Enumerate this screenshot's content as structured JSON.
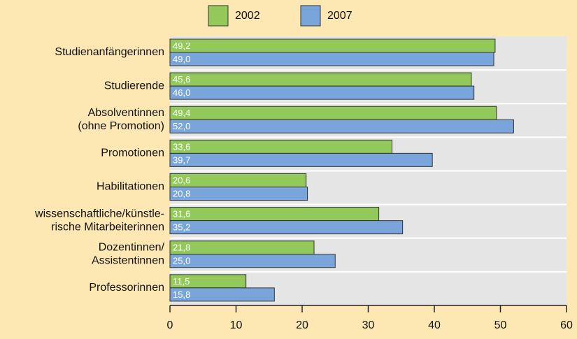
{
  "chart_data": {
    "type": "bar",
    "orientation": "horizontal",
    "categories": [
      [
        "Studienanfängerinnen"
      ],
      [
        "Studierende"
      ],
      [
        "Absolventinnen",
        "(ohne Promotion)"
      ],
      [
        "Promotionen"
      ],
      [
        "Habilitationen"
      ],
      [
        "wissenschaftliche/künstle-",
        "rische Mitarbeiterinnen"
      ],
      [
        "Dozentinnen/",
        "Assistentinnen"
      ],
      [
        "Professorinnen"
      ]
    ],
    "series": [
      {
        "name": "2002",
        "color": "#92c95a",
        "values": [
          49.2,
          45.6,
          49.4,
          33.6,
          20.6,
          31.6,
          21.8,
          11.5
        ],
        "value_labels": [
          "49,2",
          "45,6",
          "49,4",
          "33,6",
          "20,6",
          "31,6",
          "21,8",
          "11,5"
        ]
      },
      {
        "name": "2007",
        "color": "#7aa5db",
        "values": [
          49.0,
          46.0,
          52.0,
          39.7,
          20.8,
          35.2,
          25.0,
          15.8
        ],
        "value_labels": [
          "49,0",
          "46,0",
          "52,0",
          "39,7",
          "20,8",
          "35,2",
          "25,0",
          "15,8"
        ]
      }
    ],
    "xlim": [
      0,
      60
    ],
    "xticks": [
      0,
      10,
      20,
      30,
      40,
      50,
      60
    ],
    "legend": "top"
  }
}
